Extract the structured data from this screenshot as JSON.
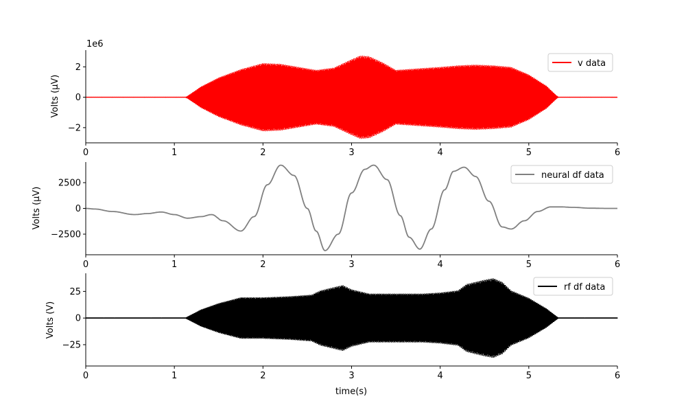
{
  "chart_data": [
    {
      "type": "line",
      "ylabel": "Volts (μV)",
      "xlabel": "",
      "xlim": [
        0,
        6
      ],
      "ylim": [
        -3000000,
        3100000
      ],
      "x_ticks": [
        0,
        1,
        2,
        3,
        4,
        5,
        6
      ],
      "x_tick_labels": [
        "0",
        "1",
        "2",
        "3",
        "4",
        "5",
        "6"
      ],
      "y_ticks": [
        -2000000,
        0,
        2000000
      ],
      "y_tick_labels": [
        "−2",
        "0",
        "2"
      ],
      "offset_label": "1e6",
      "legend": {
        "placement": "upper right"
      },
      "series": [
        {
          "name": "v data",
          "color": "#ff0000",
          "style": "dense-oscillation",
          "envelope": {
            "t": [
              0,
              1.13,
              1.3,
              1.5,
              1.75,
              2.0,
              2.2,
              2.4,
              2.6,
              2.8,
              3.0,
              3.1,
              3.2,
              3.35,
              3.5,
              3.75,
              4.0,
              4.2,
              4.4,
              4.6,
              4.8,
              5.0,
              5.2,
              5.33,
              6.0
            ],
            "amplitude": [
              5000,
              5000,
              700000,
              1300000,
              1850000,
              2250000,
              2200000,
              2000000,
              1800000,
              1950000,
              2500000,
              2750000,
              2700000,
              2300000,
              1800000,
              1900000,
              2000000,
              2100000,
              2150000,
              2100000,
              2000000,
              1500000,
              750000,
              5000,
              5000
            ]
          }
        }
      ]
    },
    {
      "type": "line",
      "ylabel": "Volts (μV)",
      "xlabel": "",
      "xlim": [
        0,
        6
      ],
      "ylim": [
        -4500,
        4500
      ],
      "x_ticks": [
        0,
        1,
        2,
        3,
        4,
        5,
        6
      ],
      "x_tick_labels": [
        "0",
        "1",
        "2",
        "3",
        "4",
        "5",
        "6"
      ],
      "y_ticks": [
        -2500,
        0,
        2500
      ],
      "y_tick_labels": [
        "−2500",
        "0",
        "2500"
      ],
      "legend": {
        "placement": "upper right"
      },
      "series": [
        {
          "name": "neural df data",
          "color": "#808080",
          "x": [
            0,
            0.1,
            0.3,
            0.55,
            0.7,
            0.85,
            1.0,
            1.15,
            1.3,
            1.42,
            1.55,
            1.75,
            1.9,
            2.05,
            2.2,
            2.35,
            2.5,
            2.6,
            2.7,
            2.85,
            3.0,
            3.15,
            3.25,
            3.4,
            3.55,
            3.65,
            3.77,
            3.9,
            4.05,
            4.15,
            4.27,
            4.4,
            4.55,
            4.7,
            4.8,
            4.95,
            5.1,
            5.25,
            5.35,
            5.5,
            5.7,
            5.9,
            6.0
          ],
          "y": [
            0,
            -60,
            -300,
            -600,
            -500,
            -350,
            -600,
            -950,
            -800,
            -600,
            -1200,
            -2200,
            -800,
            2300,
            4200,
            3200,
            0,
            -2200,
            -4100,
            -2500,
            1500,
            3800,
            4200,
            2800,
            -700,
            -2800,
            -3950,
            -2000,
            1800,
            3600,
            4000,
            3100,
            700,
            -1800,
            -2000,
            -1200,
            -300,
            150,
            150,
            100,
            20,
            0,
            0
          ]
        }
      ]
    },
    {
      "type": "line",
      "ylabel": "Volts (V)",
      "xlabel": "time(s)",
      "xlim": [
        0,
        6
      ],
      "ylim": [
        -45,
        42
      ],
      "x_ticks": [
        0,
        1,
        2,
        3,
        4,
        5,
        6
      ],
      "x_tick_labels": [
        "0",
        "1",
        "2",
        "3",
        "4",
        "5",
        "6"
      ],
      "y_ticks": [
        -25,
        0,
        25
      ],
      "y_tick_labels": [
        "−25",
        "0",
        "25"
      ],
      "legend": {
        "placement": "upper right"
      },
      "series": [
        {
          "name": "rf df data",
          "color": "#000000",
          "style": "dense-oscillation",
          "envelope": {
            "t": [
              0,
              1.13,
              1.3,
              1.5,
              1.75,
              2.0,
              2.3,
              2.55,
              2.65,
              2.8,
              2.9,
              3.0,
              3.2,
              3.5,
              3.8,
              4.0,
              4.2,
              4.3,
              4.4,
              4.5,
              4.6,
              4.7,
              4.8,
              5.0,
              5.2,
              5.33,
              6.0
            ],
            "amplitude": [
              0.5,
              0.5,
              8,
              14,
              19.5,
              19.5,
              20.5,
              22,
              26,
              29,
              31,
              27,
              23,
              23,
              23,
              24,
              26,
              32,
              34,
              36,
              37.5,
              34,
              26,
              19,
              9,
              0.5,
              0.5
            ]
          }
        }
      ]
    }
  ]
}
